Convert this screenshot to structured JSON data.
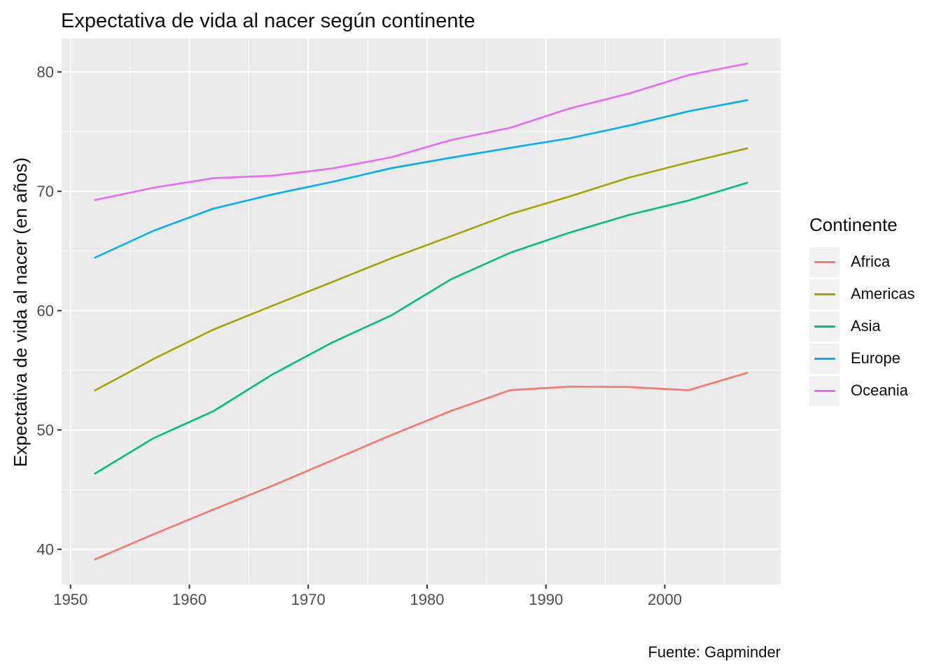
{
  "title": "Expectativa de vida al nacer según continente",
  "caption": "Fuente: Gapminder",
  "colors": {
    "panel_background": "#EBEBEB",
    "gridline": "#FFFFFF",
    "tick_mark": "#333333",
    "tick_text": "#4D4D4D",
    "title_text": "#0D0D0D",
    "legend_key_background": "#F2F2F2"
  },
  "chart_data": {
    "type": "line",
    "title": "Expectativa de vida al nacer según continente",
    "xlabel": "",
    "ylabel": "Expectativa de vida al nacer (en años)",
    "caption": "Fuente: Gapminder",
    "legend_title": "Continente",
    "legend_position": "right",
    "grid": true,
    "background": "#EBEBEB",
    "xlim": [
      1949.25,
      2009.75
    ],
    "ylim": [
      37.05,
      82.8
    ],
    "x_ticks": [
      1950,
      1960,
      1970,
      1980,
      1990,
      2000
    ],
    "y_ticks": [
      40,
      50,
      60,
      70,
      80
    ],
    "x_minor": [
      1955,
      1965,
      1975,
      1985,
      1995,
      2005
    ],
    "y_minor": [
      45,
      55,
      65,
      75
    ],
    "x": [
      1952,
      1957,
      1962,
      1967,
      1972,
      1977,
      1982,
      1987,
      1992,
      1997,
      2002,
      2007
    ],
    "series": [
      {
        "name": "Africa",
        "color": "#F8766D",
        "values": [
          39.14,
          41.27,
          43.32,
          45.33,
          47.45,
          49.58,
          51.59,
          53.34,
          53.63,
          53.6,
          53.33,
          54.81
        ]
      },
      {
        "name": "Americas",
        "color": "#A3A500",
        "values": [
          53.28,
          55.96,
          58.4,
          60.41,
          62.39,
          64.39,
          66.23,
          68.09,
          69.57,
          71.15,
          72.42,
          73.61
        ]
      },
      {
        "name": "Asia",
        "color": "#00BF7D",
        "values": [
          46.31,
          49.32,
          51.56,
          54.66,
          57.32,
          59.61,
          62.62,
          64.85,
          66.54,
          68.02,
          69.23,
          70.73
        ]
      },
      {
        "name": "Europe",
        "color": "#00B0F6",
        "values": [
          64.41,
          66.7,
          68.54,
          69.74,
          70.78,
          71.94,
          72.81,
          73.64,
          74.44,
          75.51,
          76.7,
          77.65
        ]
      },
      {
        "name": "Oceania",
        "color": "#E76BF3",
        "values": [
          69.25,
          70.3,
          71.09,
          71.31,
          71.91,
          72.85,
          74.29,
          75.32,
          76.94,
          78.19,
          79.74,
          80.72
        ]
      }
    ]
  }
}
